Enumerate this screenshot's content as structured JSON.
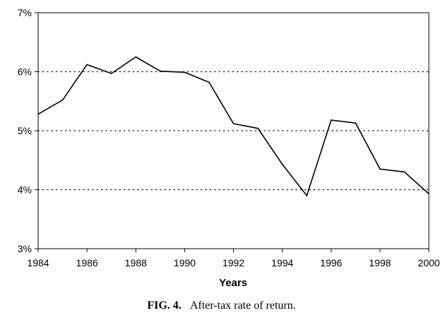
{
  "chart_data": {
    "type": "line",
    "title": "",
    "xlabel": "Years",
    "ylabel": "",
    "xlim": [
      1984,
      2000
    ],
    "ylim": [
      3,
      7
    ],
    "x_ticks": [
      1984,
      1986,
      1988,
      1990,
      1992,
      1994,
      1996,
      1998,
      2000
    ],
    "x_tick_labels": [
      "1984",
      "1986",
      "1988",
      "1990",
      "1992",
      "1994",
      "1996",
      "1998",
      "2000"
    ],
    "y_ticks": [
      3,
      4,
      5,
      6,
      7
    ],
    "y_tick_labels": [
      "3%",
      "4%",
      "5%",
      "6%",
      "7%"
    ],
    "grid": "horizontal dotted at 4%, 5%, 6%",
    "series": [
      {
        "x": [
          1984,
          1985,
          1986,
          1987,
          1988,
          1989,
          1990,
          1991,
          1992,
          1993,
          1994,
          1995,
          1996,
          1997,
          1998,
          1999,
          2000
        ],
        "values": [
          5.28,
          5.52,
          6.12,
          5.97,
          6.25,
          6.01,
          5.99,
          5.82,
          5.12,
          5.04,
          4.43,
          3.9,
          5.18,
          5.13,
          4.35,
          4.3,
          3.93
        ]
      }
    ]
  },
  "caption": {
    "figure_label": "FIG. 4.",
    "text": "After-tax rate of return."
  }
}
